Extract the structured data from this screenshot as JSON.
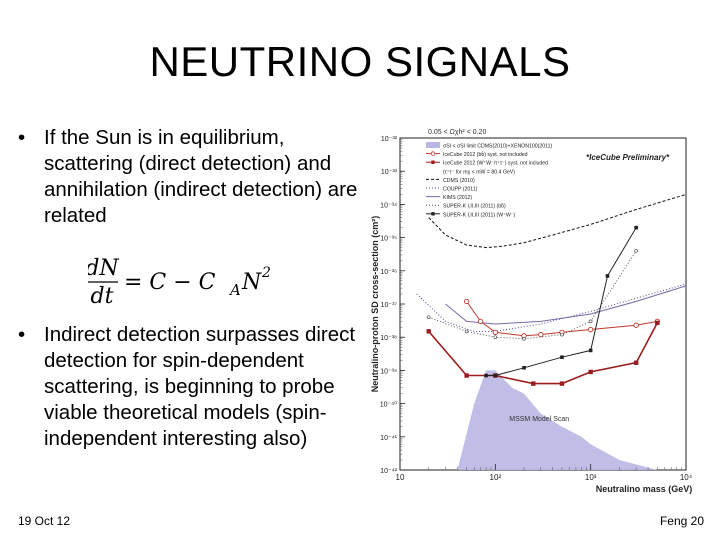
{
  "slide": {
    "title": "NEUTRINO SIGNALS",
    "bullets": [
      "If the Sun is in equilibrium, scattering (direct detection) and annihilation (indirect detection) are related",
      "Indirect detection surpasses direct detection for spin-dependent scattering, is beginning to probe viable theoretical models (spin-independent interesting also)"
    ],
    "bullet_glyph": "•",
    "footer_left": "19 Oct 12",
    "footer_right": "Feng 20"
  },
  "formula": {
    "numerator": "dN",
    "denominator": "dt",
    "rhs_prefix": "= C − C",
    "subscript": "A",
    "rhs_var": "N",
    "exponent": "2"
  },
  "chart_data": {
    "type": "line",
    "title": "",
    "xlabel": "Neutralino mass (GeV)",
    "ylabel": "Neutralino-proton SD cross-section (cm²)",
    "xscale": "log",
    "yscale": "log",
    "xlim": [
      10,
      10000
    ],
    "ylim": [
      1e-42,
      1e-32
    ],
    "x_ticks": [
      "10",
      "10²",
      "10³",
      "10⁴"
    ],
    "y_ticks": [
      "10⁻⁴²",
      "10⁻⁴¹",
      "10⁻⁴⁰",
      "10⁻³⁹",
      "10⁻³⁸",
      "10⁻³⁷",
      "10⁻³⁶",
      "10⁻³⁵",
      "10⁻³⁴",
      "10⁻³³",
      "10⁻³²"
    ],
    "header_text": "0.05 < Ωχh² < 0.20",
    "preliminary_label": "*IceCube Preliminary*",
    "region_label": "MSSM Model Scan",
    "legend_placement": "top",
    "legend": [
      {
        "label": "σSI < σSI limit CDMS(2010)+XENON100(2011)",
        "style": "band",
        "color": "#b9b6e4"
      },
      {
        "label": "IceCube 2012 (bb̄) syst. not included",
        "style": "open-circle",
        "color": "#c0392b"
      },
      {
        "label": "IceCube 2012 (W⁺W⁻/τ⁺τ⁻) syst. not included",
        "style": "filled-square",
        "color": "#9b1c1c"
      },
      {
        "label": "(τ⁺τ⁻ for mχ < mW = 80.4 GeV)",
        "style": "none",
        "color": "#333333"
      },
      {
        "label": "CDMS (2010)",
        "style": "dashed",
        "color": "#111111"
      },
      {
        "label": "COUPP (2011)",
        "style": "dotted",
        "color": "#5b3d8f"
      },
      {
        "label": "KIMS (2012)",
        "style": "solid",
        "color": "#7a6aa8"
      },
      {
        "label": "SUPER-K I,II,III (2011) (bb̄)",
        "style": "dotted-circle",
        "color": "#555555"
      },
      {
        "label": "SUPER-K I,II,III (2011) (W⁺W⁻)",
        "style": "solid-square",
        "color": "#222222"
      }
    ],
    "series": [
      {
        "name": "CDMS (2010)",
        "style": "dashed",
        "color": "#111111",
        "x": [
          20,
          30,
          50,
          80,
          120,
          200,
          400,
          1000,
          3000,
          10000
        ],
        "y": [
          4e-35,
          1.2e-35,
          6e-36,
          5e-36,
          5.5e-36,
          7e-36,
          1.2e-35,
          2.5e-35,
          7e-35,
          2e-34
        ]
      },
      {
        "name": "COUPP (2011)",
        "style": "dotted",
        "color": "#5b3d8f",
        "x": [
          15,
          30,
          60,
          100,
          300,
          1000,
          3000,
          10000
        ],
        "y": [
          2e-37,
          3e-38,
          1.5e-38,
          1.5e-38,
          2.5e-38,
          6e-38,
          1.5e-37,
          4e-37
        ]
      },
      {
        "name": "KIMS (2012)",
        "style": "solid",
        "color": "#7a6aa8",
        "x": [
          30,
          50,
          100,
          300,
          1000,
          3000,
          10000
        ],
        "y": [
          1e-37,
          3e-38,
          2.5e-38,
          3e-38,
          5e-38,
          1.2e-37,
          3.5e-37
        ]
      },
      {
        "name": "IceCube 2012 (bb̄) syst. not included",
        "style": "open-circle",
        "color": "#c0392b",
        "x": [
          50,
          70,
          100,
          200,
          300,
          500,
          1000,
          3000,
          5000
        ],
        "y": [
          1.2e-37,
          3e-38,
          1.4e-38,
          1.1e-38,
          1.2e-38,
          1.4e-38,
          1.7e-38,
          2.3e-38,
          3e-38
        ]
      },
      {
        "name": "IceCube 2012 (W⁺W⁻/τ⁺τ⁻) syst. not included",
        "style": "filled-square",
        "color": "#9b1c1c",
        "x": [
          20,
          50,
          100,
          250,
          500,
          1000,
          3000,
          5000
        ],
        "y": [
          1.5e-38,
          7e-40,
          7e-40,
          4e-40,
          4e-40,
          9e-40,
          1.7e-39,
          2.7e-38
        ]
      },
      {
        "name": "SUPER-K I,II,III (2011) (bb̄)",
        "style": "dotted-circle",
        "color": "#555555",
        "x": [
          20,
          50,
          100,
          200,
          500,
          1000,
          3000
        ],
        "y": [
          4e-38,
          1.5e-38,
          1e-38,
          9e-39,
          1.2e-38,
          3e-38,
          4e-36
        ]
      },
      {
        "name": "SUPER-K I,II,III (2011) (W⁺W⁻)",
        "style": "solid-square",
        "color": "#222222",
        "x": [
          80,
          100,
          200,
          500,
          1000,
          1500,
          3000
        ],
        "y": [
          7e-40,
          7e-40,
          1.2e-39,
          2.5e-39,
          4e-39,
          7e-37,
          2e-35
        ]
      }
    ],
    "region": {
      "name": "MSSM Model Scan",
      "color": "#b9b6e4",
      "x": [
        40,
        60,
        80,
        100,
        150,
        200,
        300,
        500,
        800,
        1000,
        2000,
        5000,
        5000,
        40
      ],
      "y": [
        1e-42,
        1e-40,
        1e-39,
        1e-39,
        3e-40,
        2e-40,
        5e-41,
        2e-41,
        1e-41,
        6e-42,
        2e-42,
        1e-42,
        1e-42,
        1e-42
      ]
    }
  }
}
